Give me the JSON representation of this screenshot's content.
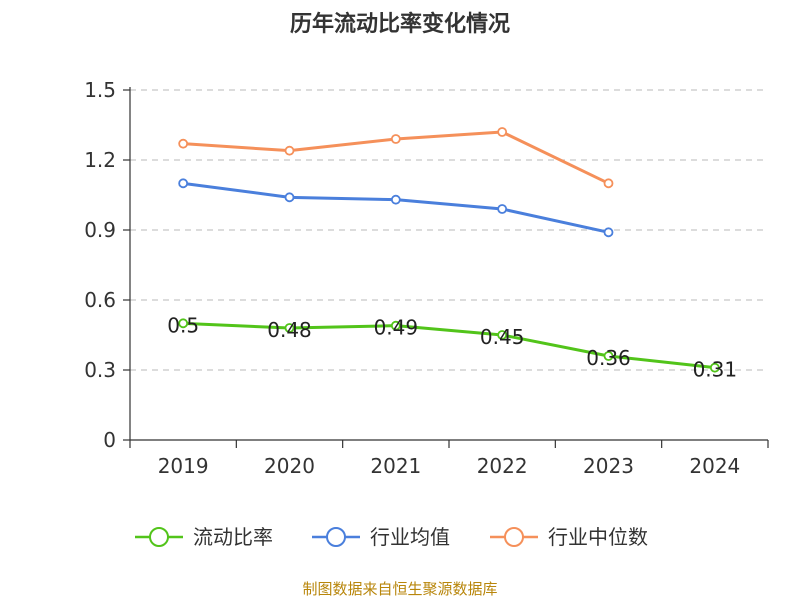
{
  "chart_data": {
    "type": "line",
    "title": "历年流动比率变化情况",
    "categories": [
      "2019",
      "2020",
      "2021",
      "2022",
      "2023",
      "2024"
    ],
    "ylim": [
      0,
      1.5
    ],
    "yticks": [
      "0",
      "0.3",
      "0.6",
      "0.9",
      "1.2",
      "1.5"
    ],
    "grid": true,
    "legend_position": "bottom",
    "series": [
      {
        "name": "流动比率",
        "color": "#52c41a",
        "values": [
          0.5,
          0.48,
          0.49,
          0.45,
          0.36,
          0.31
        ],
        "labels": [
          "0.5",
          "0.48",
          "0.49",
          "0.45",
          "0.36",
          "0.31"
        ]
      },
      {
        "name": "行业均值",
        "color": "#4a7fdc",
        "values": [
          1.1,
          1.04,
          1.03,
          0.99,
          0.89,
          null
        ]
      },
      {
        "name": "行业中位数",
        "color": "#f5905a",
        "values": [
          1.27,
          1.24,
          1.29,
          1.32,
          1.1,
          null
        ]
      }
    ]
  },
  "footer": {
    "source": "制图数据来自恒生聚源数据库"
  }
}
